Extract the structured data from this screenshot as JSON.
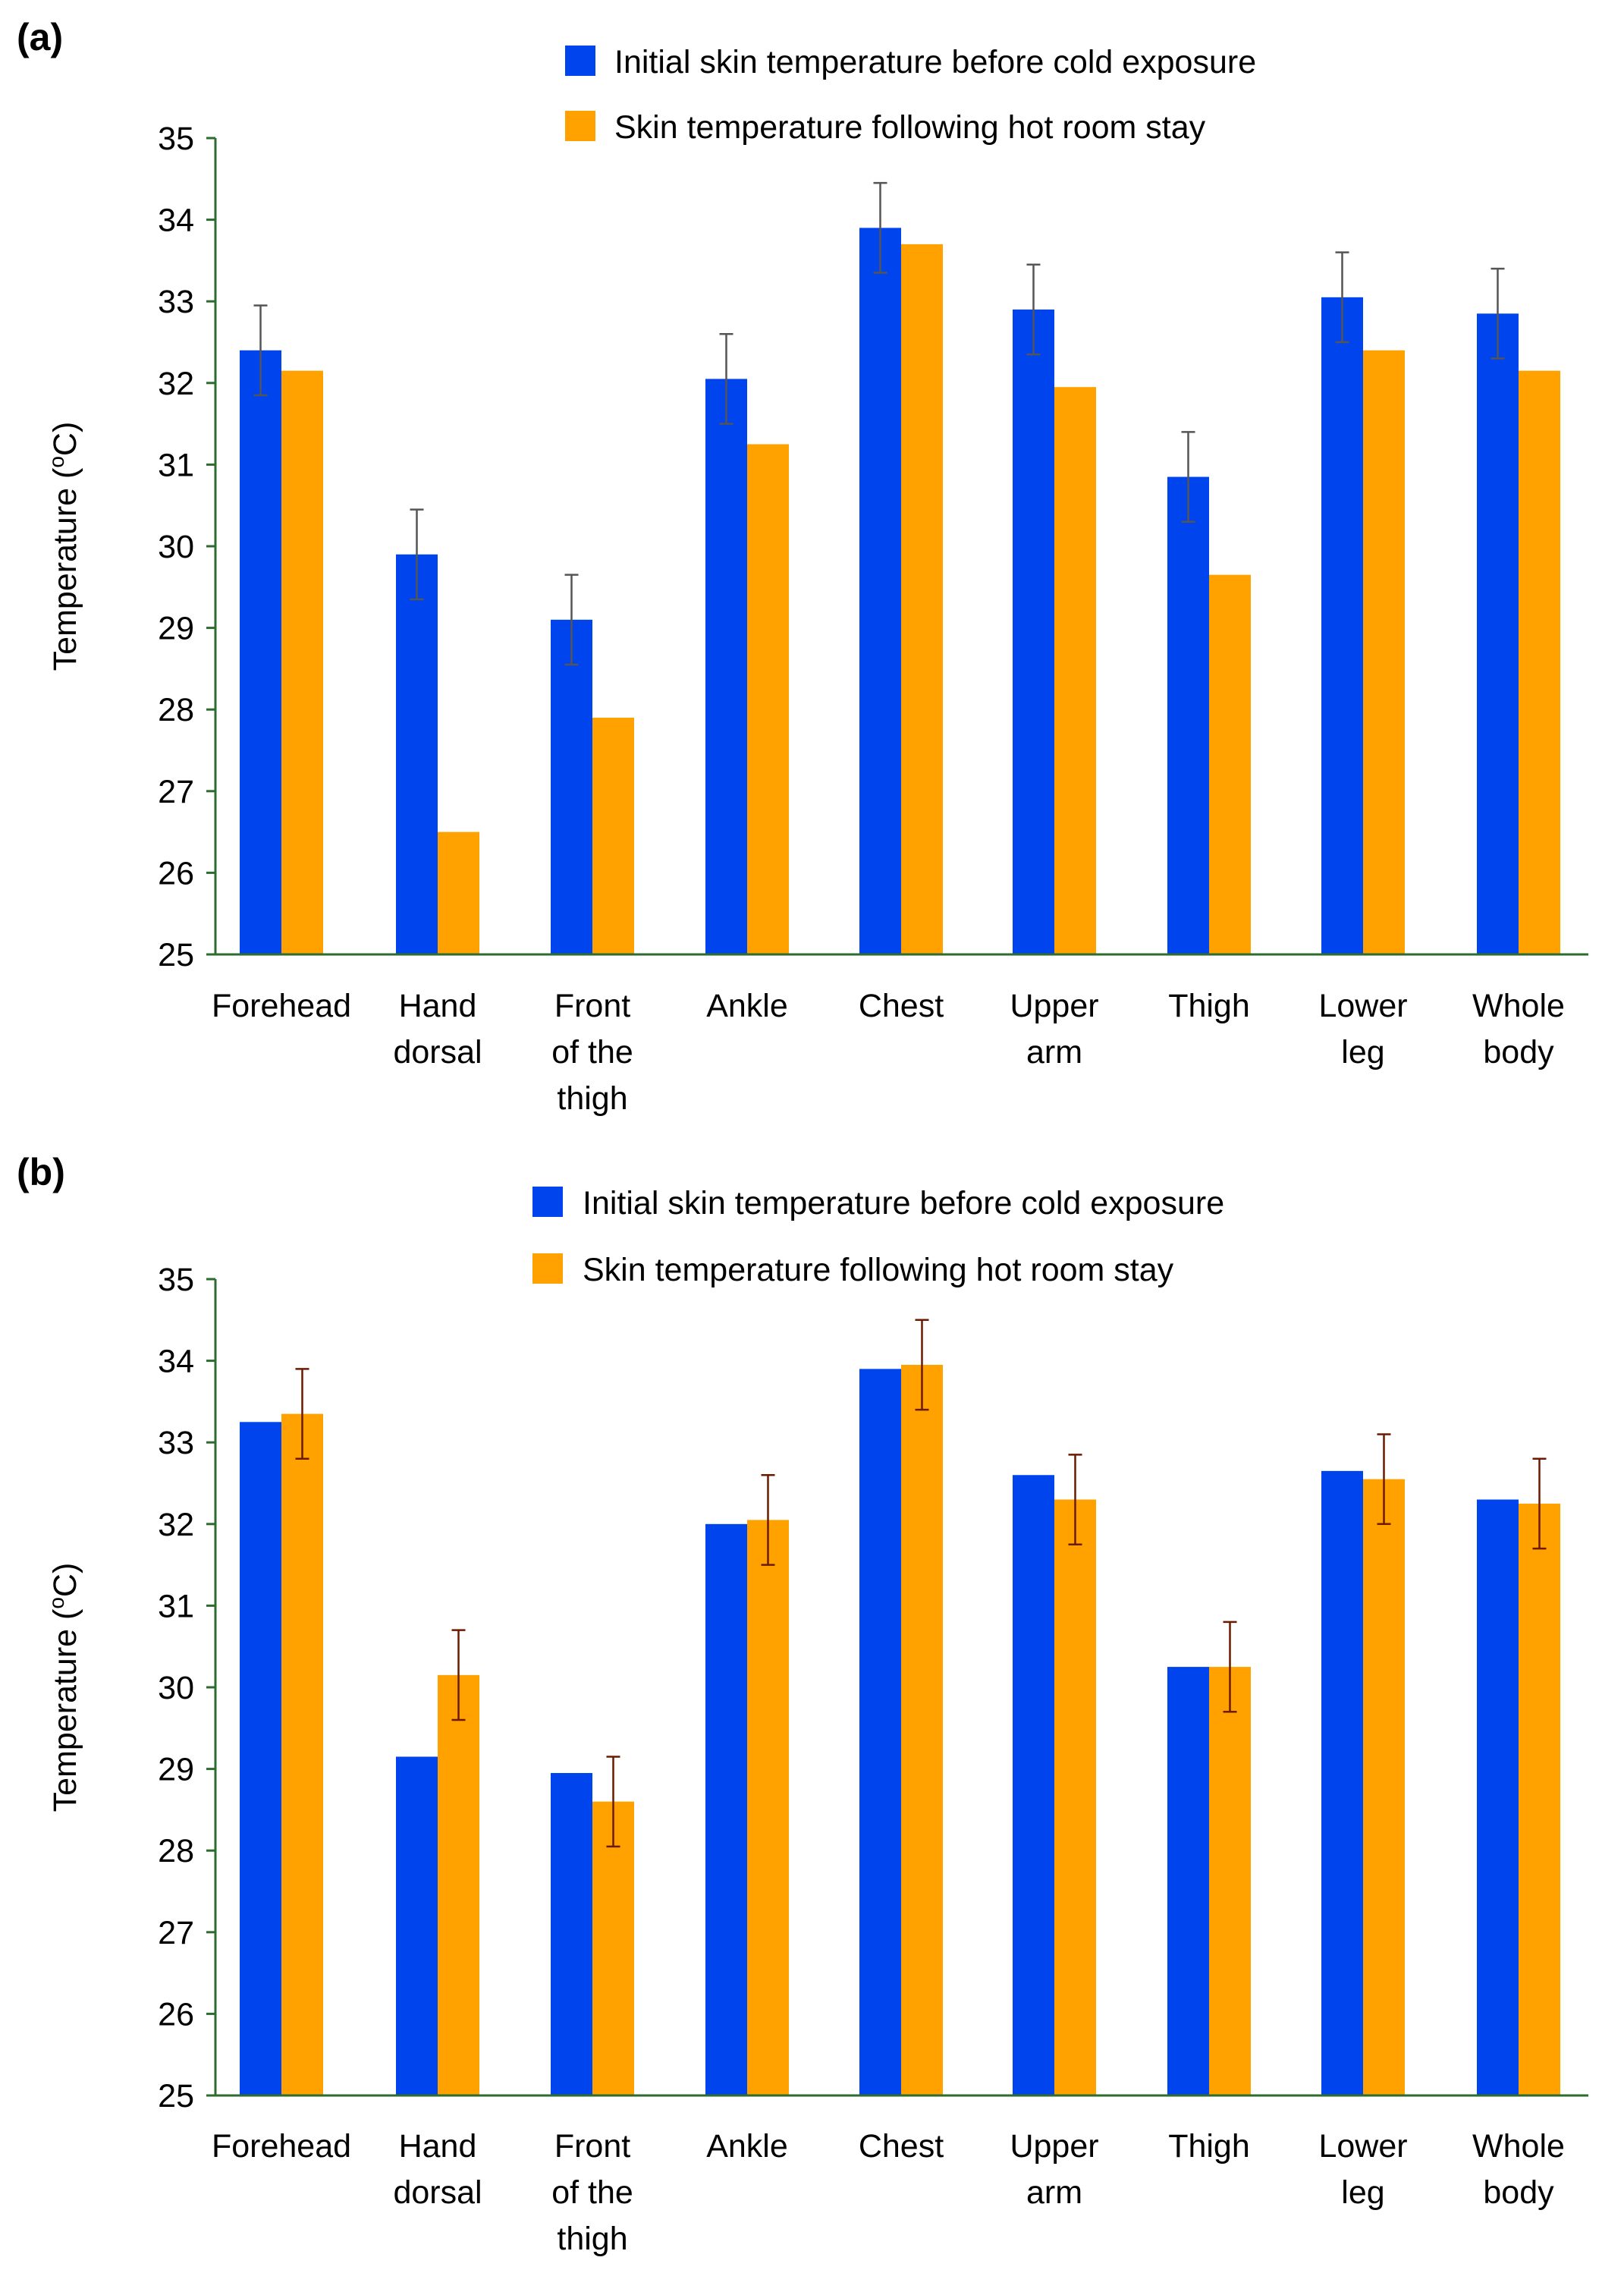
{
  "chart_data": [
    {
      "type": "bar",
      "panel_label": "(a)",
      "ylabel": {
        "before_sup": "Temperature (",
        "sup": "o",
        "after_sup": "C)"
      },
      "ylim": [
        25,
        35
      ],
      "yticks": [
        "25",
        "26",
        "27",
        "28",
        "29",
        "30",
        "31",
        "32",
        "33",
        "34",
        "35"
      ],
      "categories": [
        [
          "Forehead"
        ],
        [
          "Hand",
          "dorsal"
        ],
        [
          "Front",
          "of the",
          "thigh"
        ],
        [
          "Ankle"
        ],
        [
          "Chest"
        ],
        [
          "Upper",
          "arm"
        ],
        [
          "Thigh"
        ],
        [
          "Lower",
          "leg"
        ],
        [
          "Whole",
          "body"
        ]
      ],
      "series": [
        {
          "name": "Initial skin temperature before cold exposure",
          "color": "#0044ee",
          "values": [
            32.4,
            29.9,
            29.1,
            32.05,
            33.9,
            32.9,
            30.85,
            33.05,
            32.85
          ],
          "errors": [
            0.55,
            0.55,
            0.55,
            0.55,
            0.55,
            0.55,
            0.55,
            0.55,
            0.55
          ]
        },
        {
          "name": "Skin temperature following hot room stay",
          "color": "#ffa200",
          "values": [
            32.15,
            26.5,
            27.9,
            31.25,
            33.7,
            31.95,
            29.65,
            32.4,
            32.15
          ],
          "errors": null
        }
      ]
    },
    {
      "type": "bar",
      "panel_label": "(b)",
      "ylabel": {
        "before_sup": "Temperature (",
        "sup": "o",
        "after_sup": "C)"
      },
      "ylim": [
        25,
        35
      ],
      "yticks": [
        "25",
        "26",
        "27",
        "28",
        "29",
        "30",
        "31",
        "32",
        "33",
        "34",
        "35"
      ],
      "categories": [
        [
          "Forehead"
        ],
        [
          "Hand",
          "dorsal"
        ],
        [
          "Front",
          "of the",
          "thigh"
        ],
        [
          "Ankle"
        ],
        [
          "Chest"
        ],
        [
          "Upper",
          "arm"
        ],
        [
          "Thigh"
        ],
        [
          "Lower",
          "leg"
        ],
        [
          "Whole",
          "body"
        ]
      ],
      "series": [
        {
          "name": "Initial skin temperature before cold exposure",
          "color": "#0044ee",
          "values": [
            33.25,
            29.15,
            28.95,
            32.0,
            33.9,
            32.6,
            30.25,
            32.65,
            32.3
          ],
          "errors": null
        },
        {
          "name": "Skin temperature following hot room stay",
          "color": "#ffa200",
          "values": [
            33.35,
            30.15,
            28.6,
            32.05,
            33.95,
            32.3,
            30.25,
            32.55,
            32.25
          ],
          "errors": [
            0.55,
            0.55,
            0.55,
            0.55,
            0.55,
            0.55,
            0.55,
            0.55,
            0.55
          ]
        }
      ]
    }
  ],
  "colors": {
    "axis": "#2e6b2e",
    "error_bar_a": "#555555",
    "error_bar_b": "#6b1a00"
  }
}
